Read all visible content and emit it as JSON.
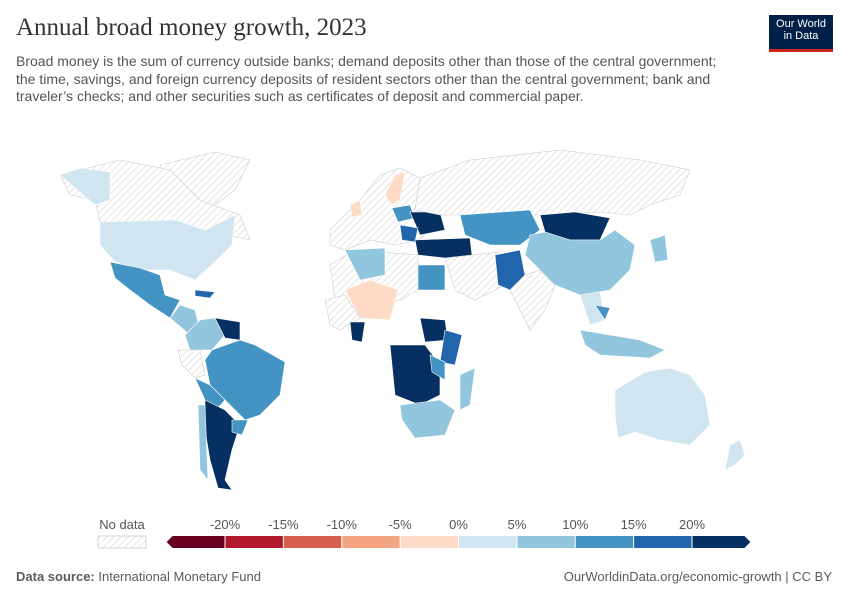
{
  "header": {
    "title": "Annual broad money growth, 2023",
    "subtitle": "Broad money is the sum of currency outside banks; demand deposits other than those of the central government; the time, savings, and foreign currency deposits of resident sectors other than the central government; bank and traveler’s checks; and other securities such as certificates of deposit and commercial paper."
  },
  "logo": {
    "line1": "Our World",
    "line2": "in Data"
  },
  "legend": {
    "no_data_label": "No data",
    "ticks": [
      {
        "value": -20,
        "label": "-20%"
      },
      {
        "value": -15,
        "label": "-15%"
      },
      {
        "value": -10,
        "label": "-10%"
      },
      {
        "value": -5,
        "label": "-5%"
      },
      {
        "value": 0,
        "label": "0%"
      },
      {
        "value": 5,
        "label": "5%"
      },
      {
        "value": 10,
        "label": "10%"
      },
      {
        "value": 15,
        "label": "15%"
      },
      {
        "value": 20,
        "label": "20%"
      }
    ],
    "colors": [
      "#67001f",
      "#b2182b",
      "#d6604d",
      "#f4a582",
      "#fddbc7",
      "#d1e5f0",
      "#92c5de",
      "#4393c3",
      "#2166ac",
      "#053061"
    ]
  },
  "footer": {
    "source_label": "Data source:",
    "source": "International Monetary Fund",
    "url": "OurWorldinData.org/economic-growth | CC BY"
  }
}
